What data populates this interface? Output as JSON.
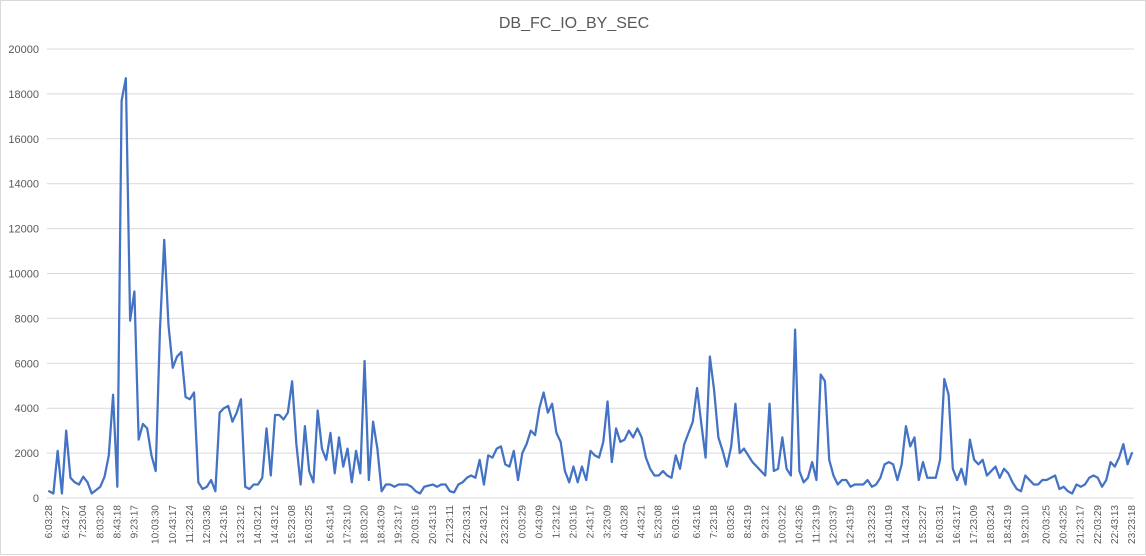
{
  "chart_data": {
    "type": "line",
    "title": "DB_FC_IO_BY_SEC",
    "xlabel": "",
    "ylabel": "",
    "ylim": [
      0,
      20000
    ],
    "yticks": [
      0,
      2000,
      4000,
      6000,
      8000,
      10000,
      12000,
      14000,
      16000,
      18000,
      20000
    ],
    "grid": true,
    "legend": "none",
    "colors": {
      "series": "#4472c4",
      "grid": "#d9d9d9",
      "text": "#595959"
    },
    "xtick_labels": [
      "6:03:28",
      "6:43:27",
      "7:23:04",
      "8:03:20",
      "8:43:18",
      "9:23:17",
      "10:03:30",
      "10:43:17",
      "11:23:24",
      "12:03:36",
      "12:43:16",
      "13:23:12",
      "14:03:21",
      "14:43:12",
      "15:23:08",
      "16:03:25",
      "16:43:14",
      "17:23:10",
      "18:03:20",
      "18:43:09",
      "19:23:17",
      "20:03:16",
      "20:43:13",
      "21:23:11",
      "22:03:31",
      "22:43:21",
      "23:23:12",
      "0:03:29",
      "0:43:09",
      "1:23:12",
      "2:03:16",
      "2:43:17",
      "3:23:09",
      "4:03:28",
      "4:43:21",
      "5:23:08",
      "6:03:16",
      "6:43:16",
      "7:23:18",
      "8:03:26",
      "8:43:19",
      "9:23:12",
      "10:03:22",
      "10:43:26",
      "11:23:19",
      "12:03:37",
      "12:43:19",
      "13:23:23",
      "14:04:19",
      "14:43:24",
      "15:23:27",
      "16:03:31",
      "16:43:17",
      "17:23:09",
      "18:03:24",
      "18:43:19",
      "19:23:10",
      "20:03:25",
      "20:43:25",
      "21:23:17",
      "22:03:29",
      "22:43:13",
      "23:23:18"
    ],
    "values": [
      300,
      200,
      2100,
      200,
      3000,
      900,
      700,
      600,
      950,
      700,
      200,
      350,
      500,
      950,
      1900,
      4600,
      500,
      17700,
      18700,
      7900,
      9200,
      2600,
      3300,
      3100,
      1900,
      1200,
      7500,
      11500,
      7700,
      5800,
      6300,
      6500,
      4500,
      4400,
      4700,
      700,
      400,
      500,
      800,
      300,
      3800,
      4000,
      4100,
      3400,
      3800,
      4400,
      500,
      400,
      600,
      600,
      900,
      3100,
      1000,
      3700,
      3700,
      3500,
      3800,
      5200,
      2400,
      600,
      3200,
      1200,
      700,
      3900,
      2200,
      1700,
      2900,
      1100,
      2700,
      1400,
      2200,
      700,
      2100,
      1100,
      6100,
      800,
      3400,
      2200,
      300,
      600,
      600,
      500,
      600,
      600,
      600,
      500,
      300,
      200,
      500,
      550,
      600,
      500,
      600,
      600,
      300,
      250,
      600,
      700,
      900,
      1000,
      900,
      1700,
      600,
      1900,
      1800,
      2200,
      2300,
      1500,
      1400,
      2100,
      800,
      2000,
      2400,
      3000,
      2800,
      4000,
      4700,
      3800,
      4200,
      2900,
      2500,
      1200,
      700,
      1400,
      700,
      1400,
      800,
      2100,
      1900,
      1800,
      2500,
      4300,
      1600,
      3100,
      2500,
      2600,
      3000,
      2700,
      3100,
      2700,
      1800,
      1300,
      1000,
      1000,
      1200,
      1000,
      900,
      1900,
      1300,
      2400,
      2900,
      3400,
      4900,
      3300,
      1800,
      6300,
      4800,
      2700,
      2100,
      1400,
      2300,
      4200,
      2000,
      2200,
      1900,
      1600,
      1400,
      1200,
      1000,
      4200,
      1200,
      1300,
      2700,
      1300,
      1000,
      7500,
      1200,
      700,
      900,
      1600,
      800,
      5500,
      5200,
      1700,
      1000,
      600,
      800,
      800,
      500,
      600,
      600,
      600,
      800,
      500,
      600,
      900,
      1500,
      1600,
      1500,
      800,
      1500,
      3200,
      2300,
      2700,
      800,
      1600,
      900,
      900,
      900,
      1700,
      5300,
      4600,
      1300,
      800,
      1300,
      600,
      2600,
      1700,
      1500,
      1700,
      1000,
      1200,
      1400,
      900,
      1300,
      1100,
      700,
      400,
      300,
      1000,
      800,
      600,
      600,
      800,
      800,
      900,
      1000,
      400,
      500,
      300,
      200,
      600,
      500,
      600,
      900,
      1000,
      900,
      500,
      800,
      1600,
      1400,
      1800,
      2400,
      1500,
      2000
    ]
  }
}
